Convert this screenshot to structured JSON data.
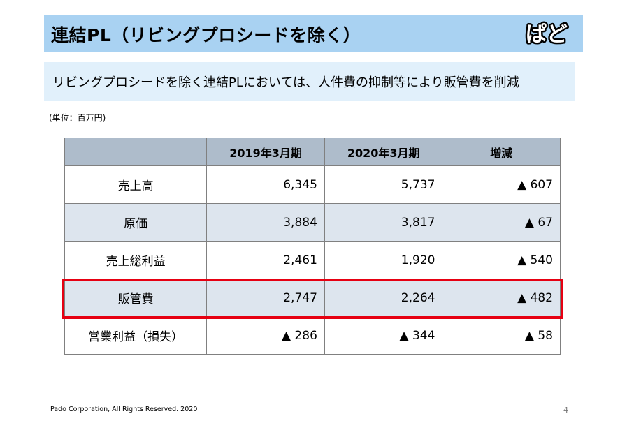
{
  "header": {
    "title": "連結PL（リビングプロシードを除く）",
    "logo_text": "ぱど"
  },
  "subtitle": "リビングプロシードを除く連結PLにおいては、人件費の抑制等により販管費を削減",
  "unit_note": "(単位：百万円)",
  "table": {
    "columns": [
      "",
      "2019年3月期",
      "2020年3月期",
      "増減"
    ],
    "rows": [
      {
        "label": "売上高",
        "fy2019": "6,345",
        "fy2020": "5,737",
        "change": "▲ 607"
      },
      {
        "label": "原価",
        "fy2019": "3,884",
        "fy2020": "3,817",
        "change": "▲ 67"
      },
      {
        "label": "売上総利益",
        "fy2019": "2,461",
        "fy2020": "1,920",
        "change": "▲ 540"
      },
      {
        "label": "販管費",
        "fy2019": "2,747",
        "fy2020": "2,264",
        "change": "▲ 482"
      },
      {
        "label": "営業利益（損失）",
        "fy2019": "▲ 286",
        "fy2020": "▲ 344",
        "change": "▲ 58"
      }
    ]
  },
  "highlight_color": "#e60012",
  "header_color": "#a9d2f2",
  "footer": {
    "copyright": "Pado Corporation, All Rights Reserved. 2020",
    "page_number": "4"
  }
}
